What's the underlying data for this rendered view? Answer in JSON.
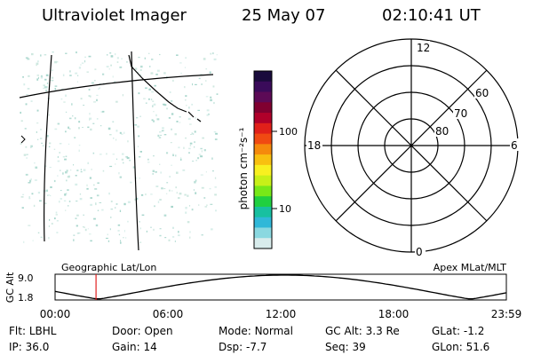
{
  "header": {
    "title": "Ultraviolet Imager",
    "date": "25 May 07",
    "time": "02:10:41 UT"
  },
  "colorbar": {
    "label": "photon cm⁻²s⁻¹",
    "ticks": [
      "100",
      "10"
    ],
    "colors": [
      "#1a0b3c",
      "#3a0b5a",
      "#5c0a56",
      "#800030",
      "#b0002a",
      "#e0201a",
      "#f04a12",
      "#f58a0c",
      "#f8c010",
      "#f8f020",
      "#c8f018",
      "#78e818",
      "#20d040",
      "#18c0a0",
      "#30b8d8",
      "#8ad8e0",
      "#d8ecec"
    ]
  },
  "polar": {
    "hour_labels": {
      "top": "12",
      "bottom": "0",
      "left": "18",
      "right": "6"
    },
    "lat_labels": [
      "60",
      "70",
      "80"
    ]
  },
  "timeline": {
    "ylabel": "GC Alt",
    "yticks": [
      "9.0",
      "1.8"
    ],
    "left_title": "Geographic Lat/Lon",
    "right_title": "Apex MLat/MLT",
    "xticks": [
      "00:00",
      "06:00",
      "12:00",
      "18:00",
      "23:59"
    ],
    "current_hour": 2.18,
    "marker_color": "#e02020"
  },
  "info": [
    {
      "key": "Flt:",
      "value": "LBHL"
    },
    {
      "key": "Door:",
      "value": "Open"
    },
    {
      "key": "Mode:",
      "value": "Normal"
    },
    {
      "key": "GC Alt:",
      "value": "3.3 Re"
    },
    {
      "key": "GLat:",
      "value": "-1.2"
    },
    {
      "key": "IP:",
      "value": "36.0"
    },
    {
      "key": "Gain:",
      "value": "14"
    },
    {
      "key": "Dsp:",
      "value": "-7.7"
    },
    {
      "key": "Seq:",
      "value": "39"
    },
    {
      "key": "GLon:",
      "value": "51.6"
    }
  ]
}
